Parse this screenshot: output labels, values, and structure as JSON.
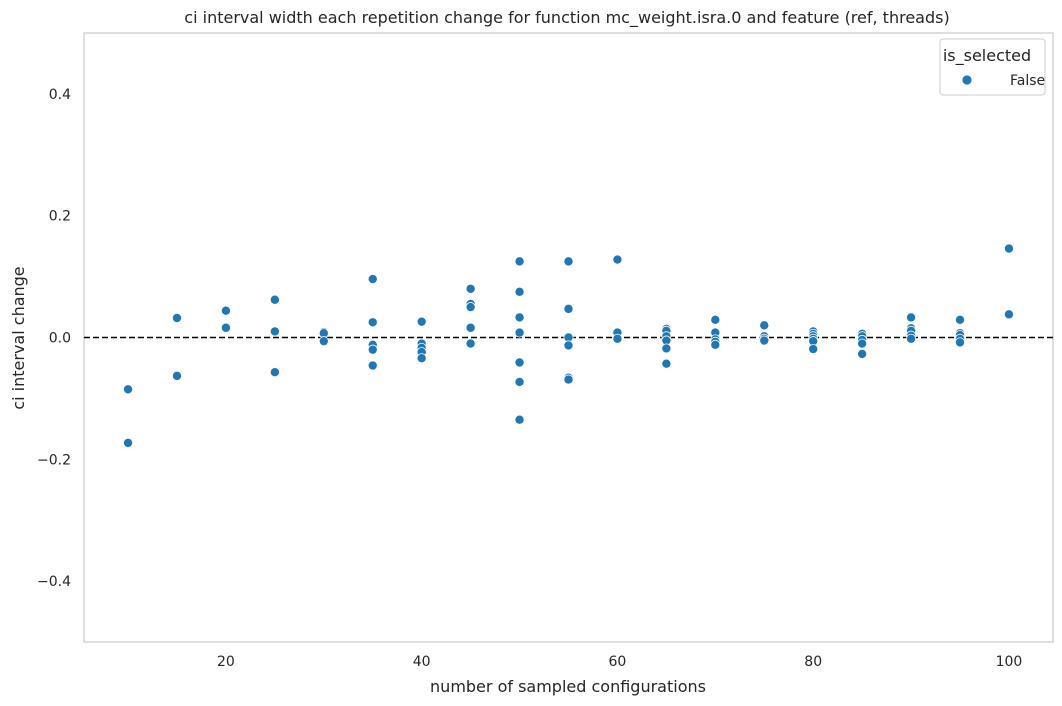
{
  "chart_data": {
    "type": "scatter",
    "title": "ci interval width each repetition change for function mc_weight.isra.0 and feature (ref, threads)",
    "xlabel": "number of sampled configurations",
    "ylabel": "ci interval change",
    "xlim": [
      5.5,
      104.5
    ],
    "ylim": [
      -0.5,
      0.5
    ],
    "xticks": [
      20,
      40,
      60,
      80,
      100
    ],
    "yticks": [
      -0.4,
      -0.2,
      0.0,
      0.2,
      0.4
    ],
    "ytick_labels": [
      "−0.4",
      "−0.2",
      "0.0",
      "0.2",
      "0.4"
    ],
    "grid": false,
    "reference_line": {
      "y": 0.0,
      "style": "dashed",
      "color": "#000000"
    },
    "legend": {
      "title": "is_selected",
      "placement": "top-right",
      "entries": [
        {
          "label": "False",
          "color": "#1f77b4"
        }
      ]
    },
    "series": [
      {
        "name": "False",
        "color": "#1f77b4",
        "points": [
          [
            10,
            -0.085
          ],
          [
            10,
            -0.173
          ],
          [
            15,
            0.032
          ],
          [
            15,
            -0.063
          ],
          [
            20,
            0.044
          ],
          [
            20,
            0.016
          ],
          [
            25,
            0.062
          ],
          [
            25,
            0.01
          ],
          [
            25,
            -0.057
          ],
          [
            30,
            0.009
          ],
          [
            30,
            0.007
          ],
          [
            30,
            -0.006
          ],
          [
            35,
            0.096
          ],
          [
            35,
            0.025
          ],
          [
            35,
            -0.012
          ],
          [
            35,
            -0.02
          ],
          [
            35,
            -0.046
          ],
          [
            40,
            0.026
          ],
          [
            40,
            -0.01
          ],
          [
            40,
            -0.017
          ],
          [
            40,
            -0.024
          ],
          [
            40,
            -0.034
          ],
          [
            45,
            0.08
          ],
          [
            45,
            0.055
          ],
          [
            45,
            0.05
          ],
          [
            45,
            0.016
          ],
          [
            45,
            -0.01
          ],
          [
            50,
            0.125
          ],
          [
            50,
            0.075
          ],
          [
            50,
            0.033
          ],
          [
            50,
            0.008
          ],
          [
            50,
            -0.041
          ],
          [
            50,
            -0.073
          ],
          [
            50,
            -0.135
          ],
          [
            55,
            0.125
          ],
          [
            55,
            0.047
          ],
          [
            55,
            0.0
          ],
          [
            55,
            -0.013
          ],
          [
            55,
            -0.066
          ],
          [
            55,
            -0.069
          ],
          [
            60,
            0.128
          ],
          [
            60,
            0.008
          ],
          [
            60,
            -0.002
          ],
          [
            65,
            0.014
          ],
          [
            65,
            0.011
          ],
          [
            65,
            0.002
          ],
          [
            65,
            -0.005
          ],
          [
            65,
            -0.018
          ],
          [
            65,
            -0.043
          ],
          [
            70,
            0.029
          ],
          [
            70,
            0.008
          ],
          [
            70,
            -0.003
          ],
          [
            70,
            -0.007
          ],
          [
            70,
            -0.012
          ],
          [
            75,
            0.02
          ],
          [
            75,
            0.002
          ],
          [
            75,
            -0.002
          ],
          [
            75,
            -0.005
          ],
          [
            80,
            0.01
          ],
          [
            80,
            0.006
          ],
          [
            80,
            0.002
          ],
          [
            80,
            -0.002
          ],
          [
            80,
            -0.006
          ],
          [
            80,
            -0.019
          ],
          [
            85,
            0.006
          ],
          [
            85,
            0.002
          ],
          [
            85,
            -0.004
          ],
          [
            85,
            -0.01
          ],
          [
            85,
            -0.027
          ],
          [
            90,
            0.033
          ],
          [
            90,
            0.015
          ],
          [
            90,
            0.011
          ],
          [
            90,
            0.003
          ],
          [
            90,
            -0.002
          ],
          [
            95,
            0.029
          ],
          [
            95,
            0.007
          ],
          [
            95,
            0.004
          ],
          [
            95,
            -0.002
          ],
          [
            95,
            -0.008
          ],
          [
            100,
            0.146
          ],
          [
            100,
            0.038
          ]
        ]
      }
    ]
  }
}
